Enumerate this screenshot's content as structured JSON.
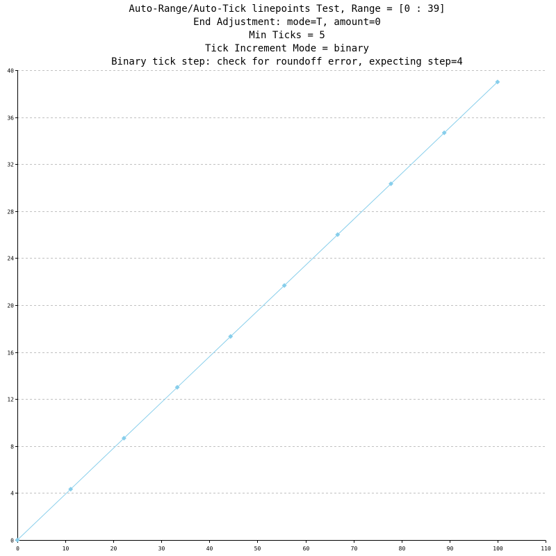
{
  "chart_data": {
    "type": "line",
    "title_lines": [
      "Auto-Range/Auto-Tick linepoints Test, Range = [0 : 39]",
      "End Adjustment: mode=T, amount=0",
      "Min Ticks = 5",
      "Tick Increment Mode = binary",
      "Binary tick step: check for roundoff error, expecting step=4"
    ],
    "xlabel": "",
    "ylabel": "",
    "xlim": [
      0,
      110
    ],
    "ylim": [
      0,
      40
    ],
    "x_ticks": [
      "0",
      "10",
      "20",
      "30",
      "40",
      "50",
      "60",
      "70",
      "80",
      "90",
      "100",
      "110"
    ],
    "y_ticks": [
      "0",
      "4",
      "8",
      "12",
      "16",
      "20",
      "24",
      "28",
      "32",
      "36",
      "40"
    ],
    "grid": "horizontal dashed",
    "legend": "none",
    "series": [
      {
        "x": [
          0,
          11.1,
          22.2,
          33.3,
          44.4,
          55.6,
          66.7,
          77.8,
          88.9,
          100
        ],
        "y": [
          0,
          4.33,
          8.67,
          13,
          17.33,
          21.67,
          26,
          30.33,
          34.67,
          39
        ]
      }
    ]
  },
  "colors": {
    "series": "#87ceeb",
    "grid": "#c0c0c0",
    "axis": "#000000",
    "background": "#ffffff"
  }
}
